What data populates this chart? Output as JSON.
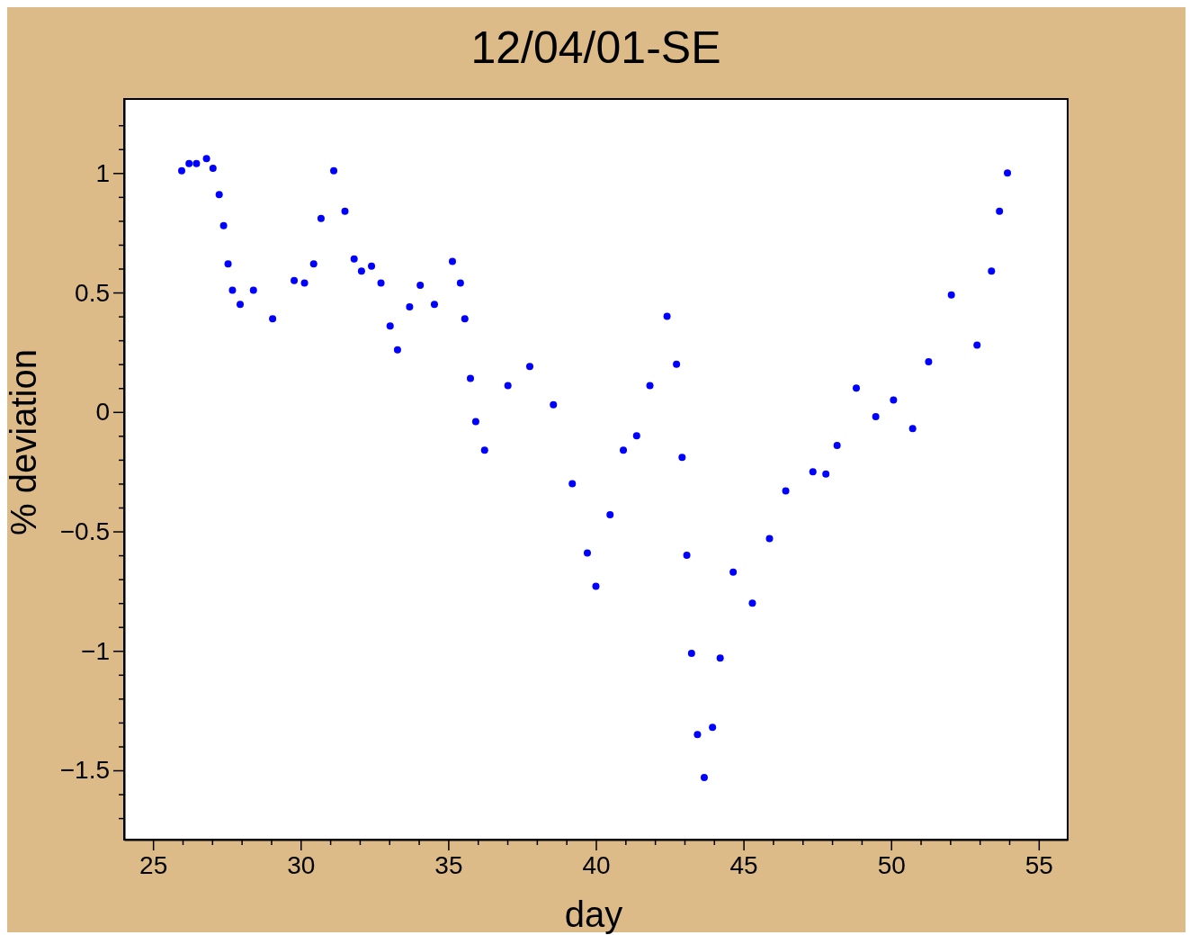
{
  "chart_data": {
    "type": "scatter",
    "title": "12/04/01-SE",
    "xlabel": "day",
    "ylabel": "% deviation",
    "xlim": [
      24.02,
      55.98
    ],
    "ylim": [
      -1.79,
      1.31
    ],
    "xticks": [
      25,
      {
        "value": 26,
        "label": null
      },
      {
        "value": 27,
        "label": null
      },
      {
        "value": 28,
        "label": null
      },
      {
        "value": 29,
        "label": null
      },
      30,
      {
        "value": 31,
        "label": null
      },
      {
        "value": 32,
        "label": null
      },
      {
        "value": 33,
        "label": null
      },
      {
        "value": 34,
        "label": null
      },
      35,
      {
        "value": 36,
        "label": null
      },
      {
        "value": 37,
        "label": null
      },
      {
        "value": 38,
        "label": null
      },
      {
        "value": 39,
        "label": null
      },
      40,
      {
        "value": 41,
        "label": null
      },
      {
        "value": 42,
        "label": null
      },
      {
        "value": 43,
        "label": null
      },
      {
        "value": 44,
        "label": null
      },
      45,
      {
        "value": 46,
        "label": null
      },
      {
        "value": 47,
        "label": null
      },
      {
        "value": 48,
        "label": null
      },
      {
        "value": 49,
        "label": null
      },
      50,
      {
        "value": 51,
        "label": null
      },
      {
        "value": 52,
        "label": null
      },
      {
        "value": 53,
        "label": null
      },
      {
        "value": 54,
        "label": null
      },
      55
    ],
    "yticks": [
      {
        "value": -1.7,
        "label": null
      },
      {
        "value": -1.6,
        "label": null
      },
      {
        "value": -1.5,
        "label": "−1.5"
      },
      {
        "value": -1.4,
        "label": null
      },
      {
        "value": -1.3,
        "label": null
      },
      {
        "value": -1.2,
        "label": null
      },
      {
        "value": -1.1,
        "label": null
      },
      {
        "value": -1,
        "label": "−1"
      },
      {
        "value": -0.9,
        "label": null
      },
      {
        "value": -0.8,
        "label": null
      },
      {
        "value": -0.7,
        "label": null
      },
      {
        "value": -0.6,
        "label": null
      },
      {
        "value": -0.5,
        "label": "−0.5"
      },
      {
        "value": -0.4,
        "label": null
      },
      {
        "value": -0.3,
        "label": null
      },
      {
        "value": -0.2,
        "label": null
      },
      {
        "value": -0.1,
        "label": null
      },
      0,
      {
        "value": 0.1,
        "label": null
      },
      {
        "value": 0.2,
        "label": null
      },
      {
        "value": 0.3,
        "label": null
      },
      {
        "value": 0.4,
        "label": null
      },
      0.5,
      {
        "value": 0.6,
        "label": null
      },
      {
        "value": 0.7,
        "label": null
      },
      {
        "value": 0.8,
        "label": null
      },
      {
        "value": 0.9,
        "label": null
      },
      1,
      {
        "value": 1.1,
        "label": null
      },
      {
        "value": 1.2,
        "label": null
      }
    ],
    "marker": "circle",
    "series": [
      {
        "color": "#0000ff",
        "x": [
          25.97,
          26.22,
          26.47,
          26.81,
          27.03,
          27.24,
          27.39,
          27.54,
          27.69,
          27.95,
          28.4,
          29.05,
          29.78,
          30.13,
          30.44,
          30.69,
          31.12,
          31.5,
          31.81,
          32.06,
          32.4,
          32.72,
          33.03,
          33.28,
          33.69,
          34.05,
          34.53,
          35.14,
          35.41,
          35.56,
          35.75,
          35.93,
          36.23,
          37.02,
          37.76,
          38.56,
          39.2,
          39.71,
          40.0,
          40.48,
          40.93,
          41.38,
          41.83,
          42.41,
          42.73,
          42.92,
          43.08,
          43.24,
          43.44,
          43.67,
          43.95,
          44.21,
          44.65,
          45.3,
          45.88,
          46.43,
          47.35,
          47.79,
          48.17,
          48.82,
          49.48,
          50.08,
          50.73,
          51.27,
          52.04,
          52.91,
          53.4,
          53.67,
          53.94
        ],
        "values": [
          1.01,
          1.04,
          1.04,
          1.06,
          1.02,
          0.91,
          0.78,
          0.62,
          0.51,
          0.45,
          0.51,
          0.39,
          0.55,
          0.54,
          0.62,
          0.81,
          1.01,
          0.84,
          0.64,
          0.59,
          0.61,
          0.54,
          0.36,
          0.26,
          0.44,
          0.53,
          0.45,
          0.63,
          0.54,
          0.39,
          0.14,
          -0.04,
          -0.16,
          0.11,
          0.19,
          0.03,
          -0.3,
          -0.59,
          -0.73,
          -0.43,
          -0.16,
          -0.1,
          0.11,
          0.4,
          0.2,
          -0.19,
          -0.6,
          -1.01,
          -1.35,
          -1.53,
          -1.32,
          -1.03,
          -0.67,
          -0.8,
          -0.53,
          -0.33,
          -0.25,
          -0.26,
          -0.14,
          0.1,
          -0.02,
          0.05,
          -0.07,
          0.21,
          0.49,
          0.28,
          0.59,
          0.84,
          1.0
        ]
      }
    ]
  }
}
